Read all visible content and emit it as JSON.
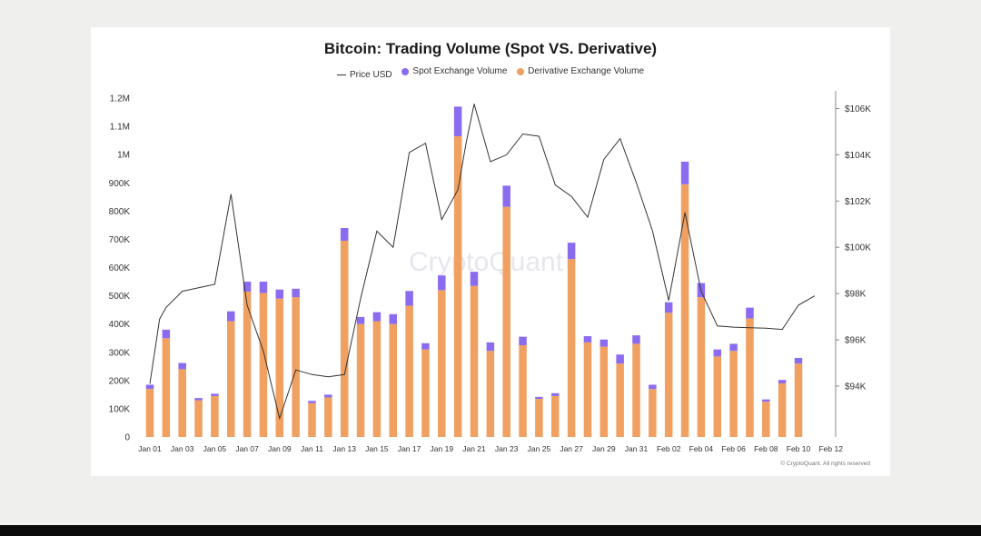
{
  "chart_data": {
    "type": "bar",
    "title": "Bitcoin: Trading Volume (Spot VS. Derivative)",
    "legend": [
      {
        "name": "Price USD",
        "kind": "line",
        "color": "#333333"
      },
      {
        "name": "Spot Exchange Volume",
        "kind": "dot",
        "color": "#8b6cf0"
      },
      {
        "name": "Derivative Exchange Volume",
        "kind": "dot",
        "color": "#f0a060"
      }
    ],
    "watermark": "CryptoQuant",
    "credit": "© CryptoQuant. All rights reserved",
    "x_tick_labels": [
      "Jan 01",
      "Jan 03",
      "Jan 05",
      "Jan 07",
      "Jan 09",
      "Jan 11",
      "Jan 13",
      "Jan 15",
      "Jan 17",
      "Jan 19",
      "Jan 21",
      "Jan 23",
      "Jan 25",
      "Jan 27",
      "Jan 29",
      "Jan 31",
      "Feb 02",
      "Feb 04",
      "Feb 06",
      "Feb 08",
      "Feb 10",
      "Feb 12"
    ],
    "x_tick_day_index": [
      0,
      2,
      4,
      6,
      8,
      10,
      12,
      14,
      16,
      18,
      20,
      22,
      24,
      26,
      28,
      30,
      32,
      34,
      36,
      38,
      40,
      42
    ],
    "y_left": {
      "ticks": [
        0,
        100000,
        200000,
        300000,
        400000,
        500000,
        600000,
        700000,
        800000,
        900000,
        1000000,
        1100000,
        1200000
      ],
      "tick_labels": [
        "0",
        "100K",
        "200K",
        "300K",
        "400K",
        "500K",
        "600K",
        "700K",
        "800K",
        "900K",
        "1M",
        "1.1M",
        "1.2M"
      ],
      "range": [
        0,
        1200000
      ]
    },
    "y_right": {
      "ticks": [
        94000,
        96000,
        98000,
        100000,
        102000,
        104000,
        106000
      ],
      "tick_labels": [
        "$94K",
        "$96K",
        "$98K",
        "$100K",
        "$102K",
        "$104K",
        "$106K"
      ],
      "range": [
        91800,
        106450
      ]
    },
    "bar_day_index": [
      0,
      1,
      2,
      3,
      4,
      5,
      6,
      7,
      8,
      9,
      10,
      11,
      12,
      13,
      14,
      15,
      16,
      17,
      18,
      19,
      20,
      21,
      22,
      23,
      24,
      25,
      26,
      27,
      28,
      29,
      30,
      31,
      32,
      33,
      34,
      35,
      36,
      37,
      38,
      39,
      40
    ],
    "series": [
      {
        "name": "Derivative Exchange Volume",
        "stack": "volume",
        "values": [
          170000,
          350000,
          240000,
          130000,
          145000,
          410000,
          515000,
          510000,
          490000,
          495000,
          120000,
          140000,
          695000,
          400000,
          410000,
          400000,
          465000,
          310000,
          520000,
          1065000,
          535000,
          305000,
          815000,
          325000,
          135000,
          145000,
          630000,
          335000,
          320000,
          260000,
          330000,
          170000,
          440000,
          895000,
          495000,
          285000,
          305000,
          420000,
          125000,
          190000,
          260000
        ]
      },
      {
        "name": "Spot Exchange Volume",
        "stack": "volume",
        "values": [
          15000,
          30000,
          22000,
          8000,
          8000,
          35000,
          35000,
          40000,
          32000,
          30000,
          8000,
          10000,
          45000,
          25000,
          32000,
          35000,
          52000,
          22000,
          52000,
          105000,
          50000,
          30000,
          75000,
          30000,
          7000,
          10000,
          58000,
          22000,
          25000,
          32000,
          30000,
          15000,
          37000,
          80000,
          50000,
          25000,
          25000,
          38000,
          8000,
          12000,
          20000
        ]
      },
      {
        "name": "Price USD",
        "x": [
          0,
          0.6,
          1,
          2,
          3,
          4,
          5,
          6,
          7,
          8,
          9,
          10,
          11,
          12,
          13,
          14,
          15,
          16,
          17,
          18,
          19,
          19.5,
          20,
          21,
          22,
          23,
          24,
          25,
          26,
          27,
          28,
          29,
          30,
          31,
          32,
          33,
          34,
          35,
          36,
          37,
          38,
          39,
          40,
          41,
          42
        ],
        "values": [
          94100,
          96900,
          97400,
          98100,
          98250,
          98400,
          102300,
          97500,
          95500,
          92600,
          94700,
          94500,
          94400,
          94500,
          97800,
          100700,
          100000,
          104100,
          104500,
          101200,
          102500,
          104500,
          106200,
          103700,
          104000,
          104900,
          104800,
          102700,
          102200,
          101300,
          103800,
          104700,
          102800,
          100700,
          97700,
          101500,
          98100,
          96600,
          96550,
          96520,
          96500,
          96450,
          97500,
          97900,
          null
        ]
      }
    ]
  }
}
